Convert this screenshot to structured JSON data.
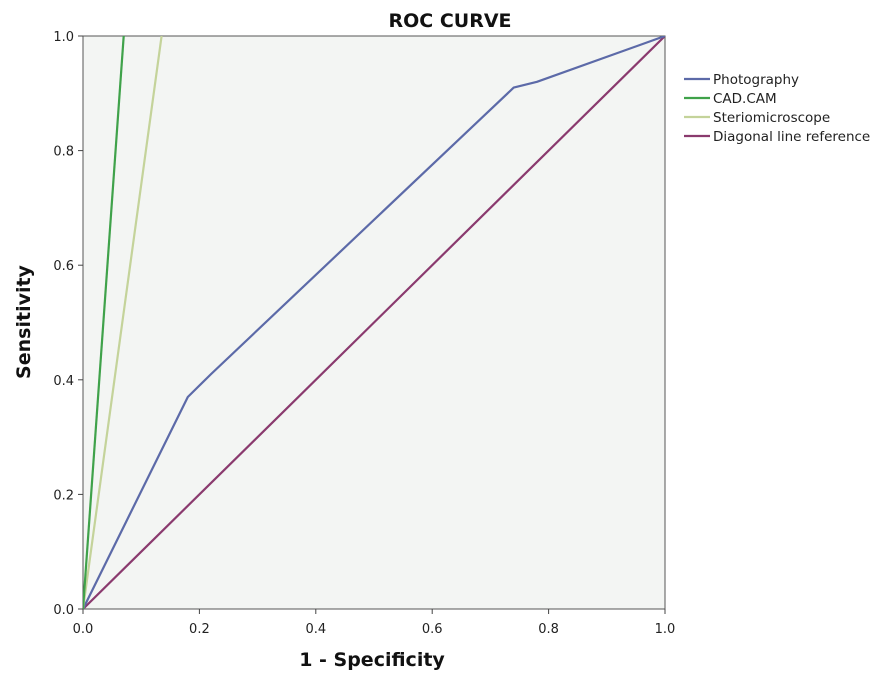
{
  "chart_data": {
    "type": "line",
    "title": "ROC CURVE",
    "xlabel": "1 - Specificity",
    "ylabel": "Sensitivity",
    "xlim": [
      0.0,
      1.0
    ],
    "ylim": [
      0.0,
      1.0
    ],
    "x_ticks": [
      "0.0",
      "0.2",
      "0.4",
      "0.6",
      "0.8",
      "1.0"
    ],
    "y_ticks": [
      "0.0",
      "0.2",
      "0.4",
      "0.6",
      "0.8",
      "1.0"
    ],
    "grid": false,
    "legend_position": "right",
    "plot_background": "#f3f5f3",
    "series": [
      {
        "name": "Photography",
        "color": "#5c6aa8",
        "points": [
          [
            0.0,
            0.0
          ],
          [
            0.18,
            0.37
          ],
          [
            0.22,
            0.41
          ],
          [
            0.74,
            0.91
          ],
          [
            0.78,
            0.92
          ],
          [
            1.0,
            1.0
          ]
        ]
      },
      {
        "name": "CAD.CAM",
        "color": "#3fa24a",
        "points": [
          [
            0.0,
            0.0
          ],
          [
            0.07,
            1.0
          ]
        ]
      },
      {
        "name": "Steriomicroscope",
        "color": "#c4d39a",
        "points": [
          [
            0.0,
            0.0
          ],
          [
            0.135,
            1.0
          ]
        ]
      },
      {
        "name": "Diagonal line reference",
        "color": "#8a3a6e",
        "points": [
          [
            0.0,
            0.0
          ],
          [
            1.0,
            1.0
          ]
        ]
      }
    ]
  }
}
